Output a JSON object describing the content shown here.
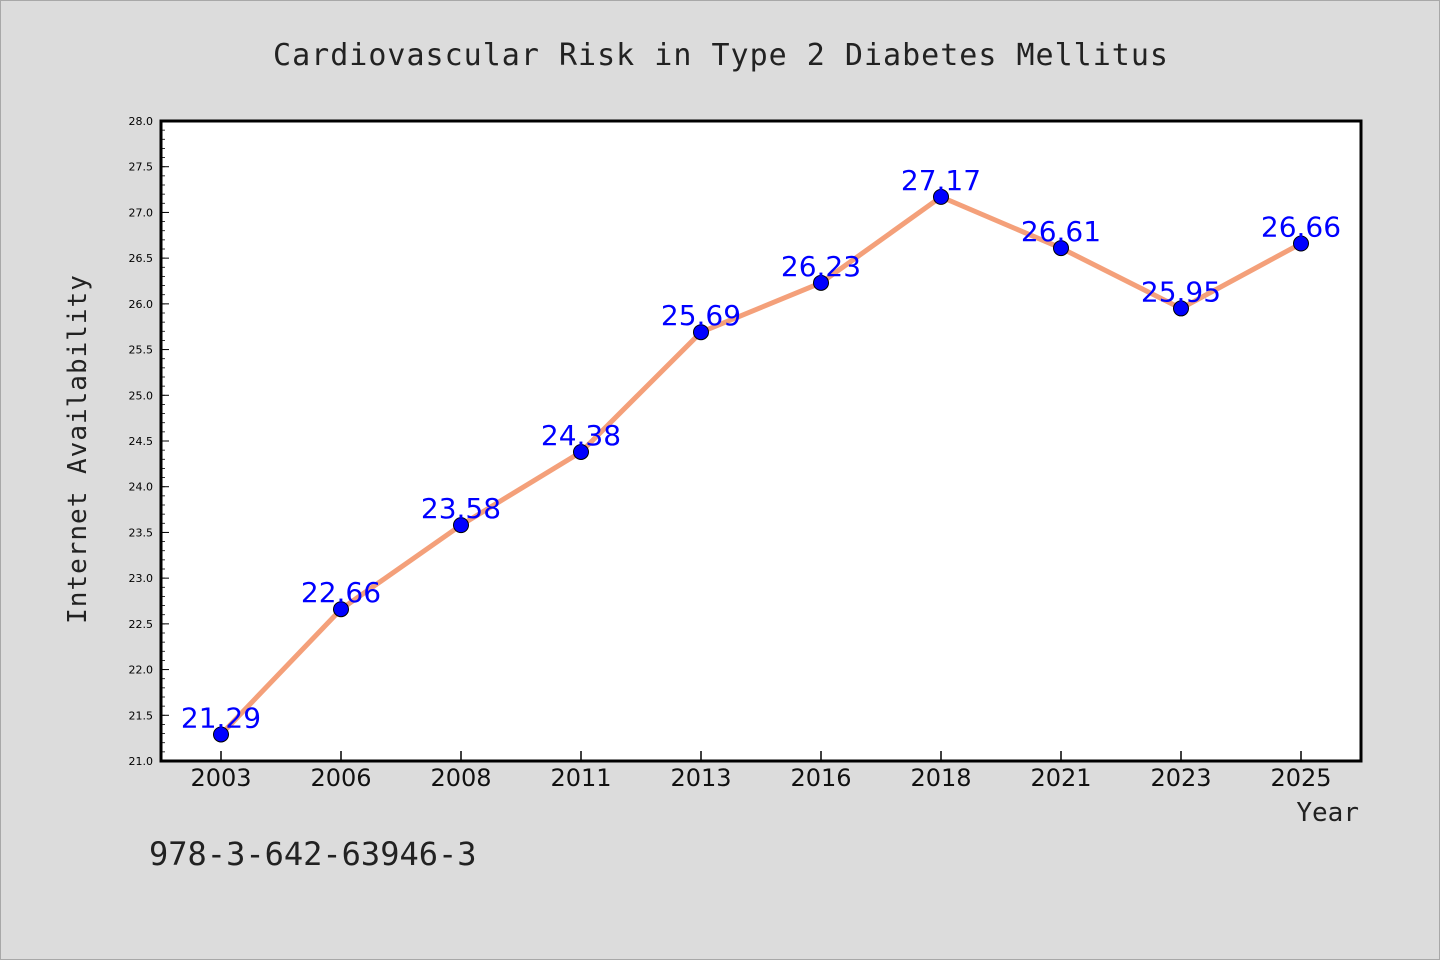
{
  "chart_data": {
    "type": "line",
    "title": "Cardiovascular Risk in Type 2 Diabetes Mellitus",
    "xlabel": "Year",
    "ylabel": "Internet Availability",
    "categories": [
      "2003",
      "2006",
      "2008",
      "2011",
      "2013",
      "2016",
      "2018",
      "2021",
      "2023",
      "2025"
    ],
    "values": [
      21.29,
      22.66,
      23.58,
      24.38,
      25.69,
      26.23,
      27.17,
      26.61,
      25.95,
      26.66
    ],
    "data_labels": [
      "21.29",
      "22.66",
      "23.58",
      "24.38",
      "25.69",
      "26.23",
      "27.17",
      "26.61",
      "25.95",
      "26.66"
    ],
    "ylim": [
      21.0,
      28.0
    ],
    "yticks": [
      "21.0",
      "21.5",
      "22.0",
      "22.5",
      "23.0",
      "23.5",
      "24.0",
      "24.5",
      "25.0",
      "25.5",
      "26.0",
      "26.5",
      "27.0",
      "27.5",
      "28.0"
    ],
    "grid": false,
    "colors": {
      "line": "#f4a07a",
      "marker": "#0000ff",
      "label": "#0000ff",
      "background": "#dcdcdc",
      "plot_background": "#ffffff"
    }
  },
  "footnote": "978-3-642-63946-3"
}
